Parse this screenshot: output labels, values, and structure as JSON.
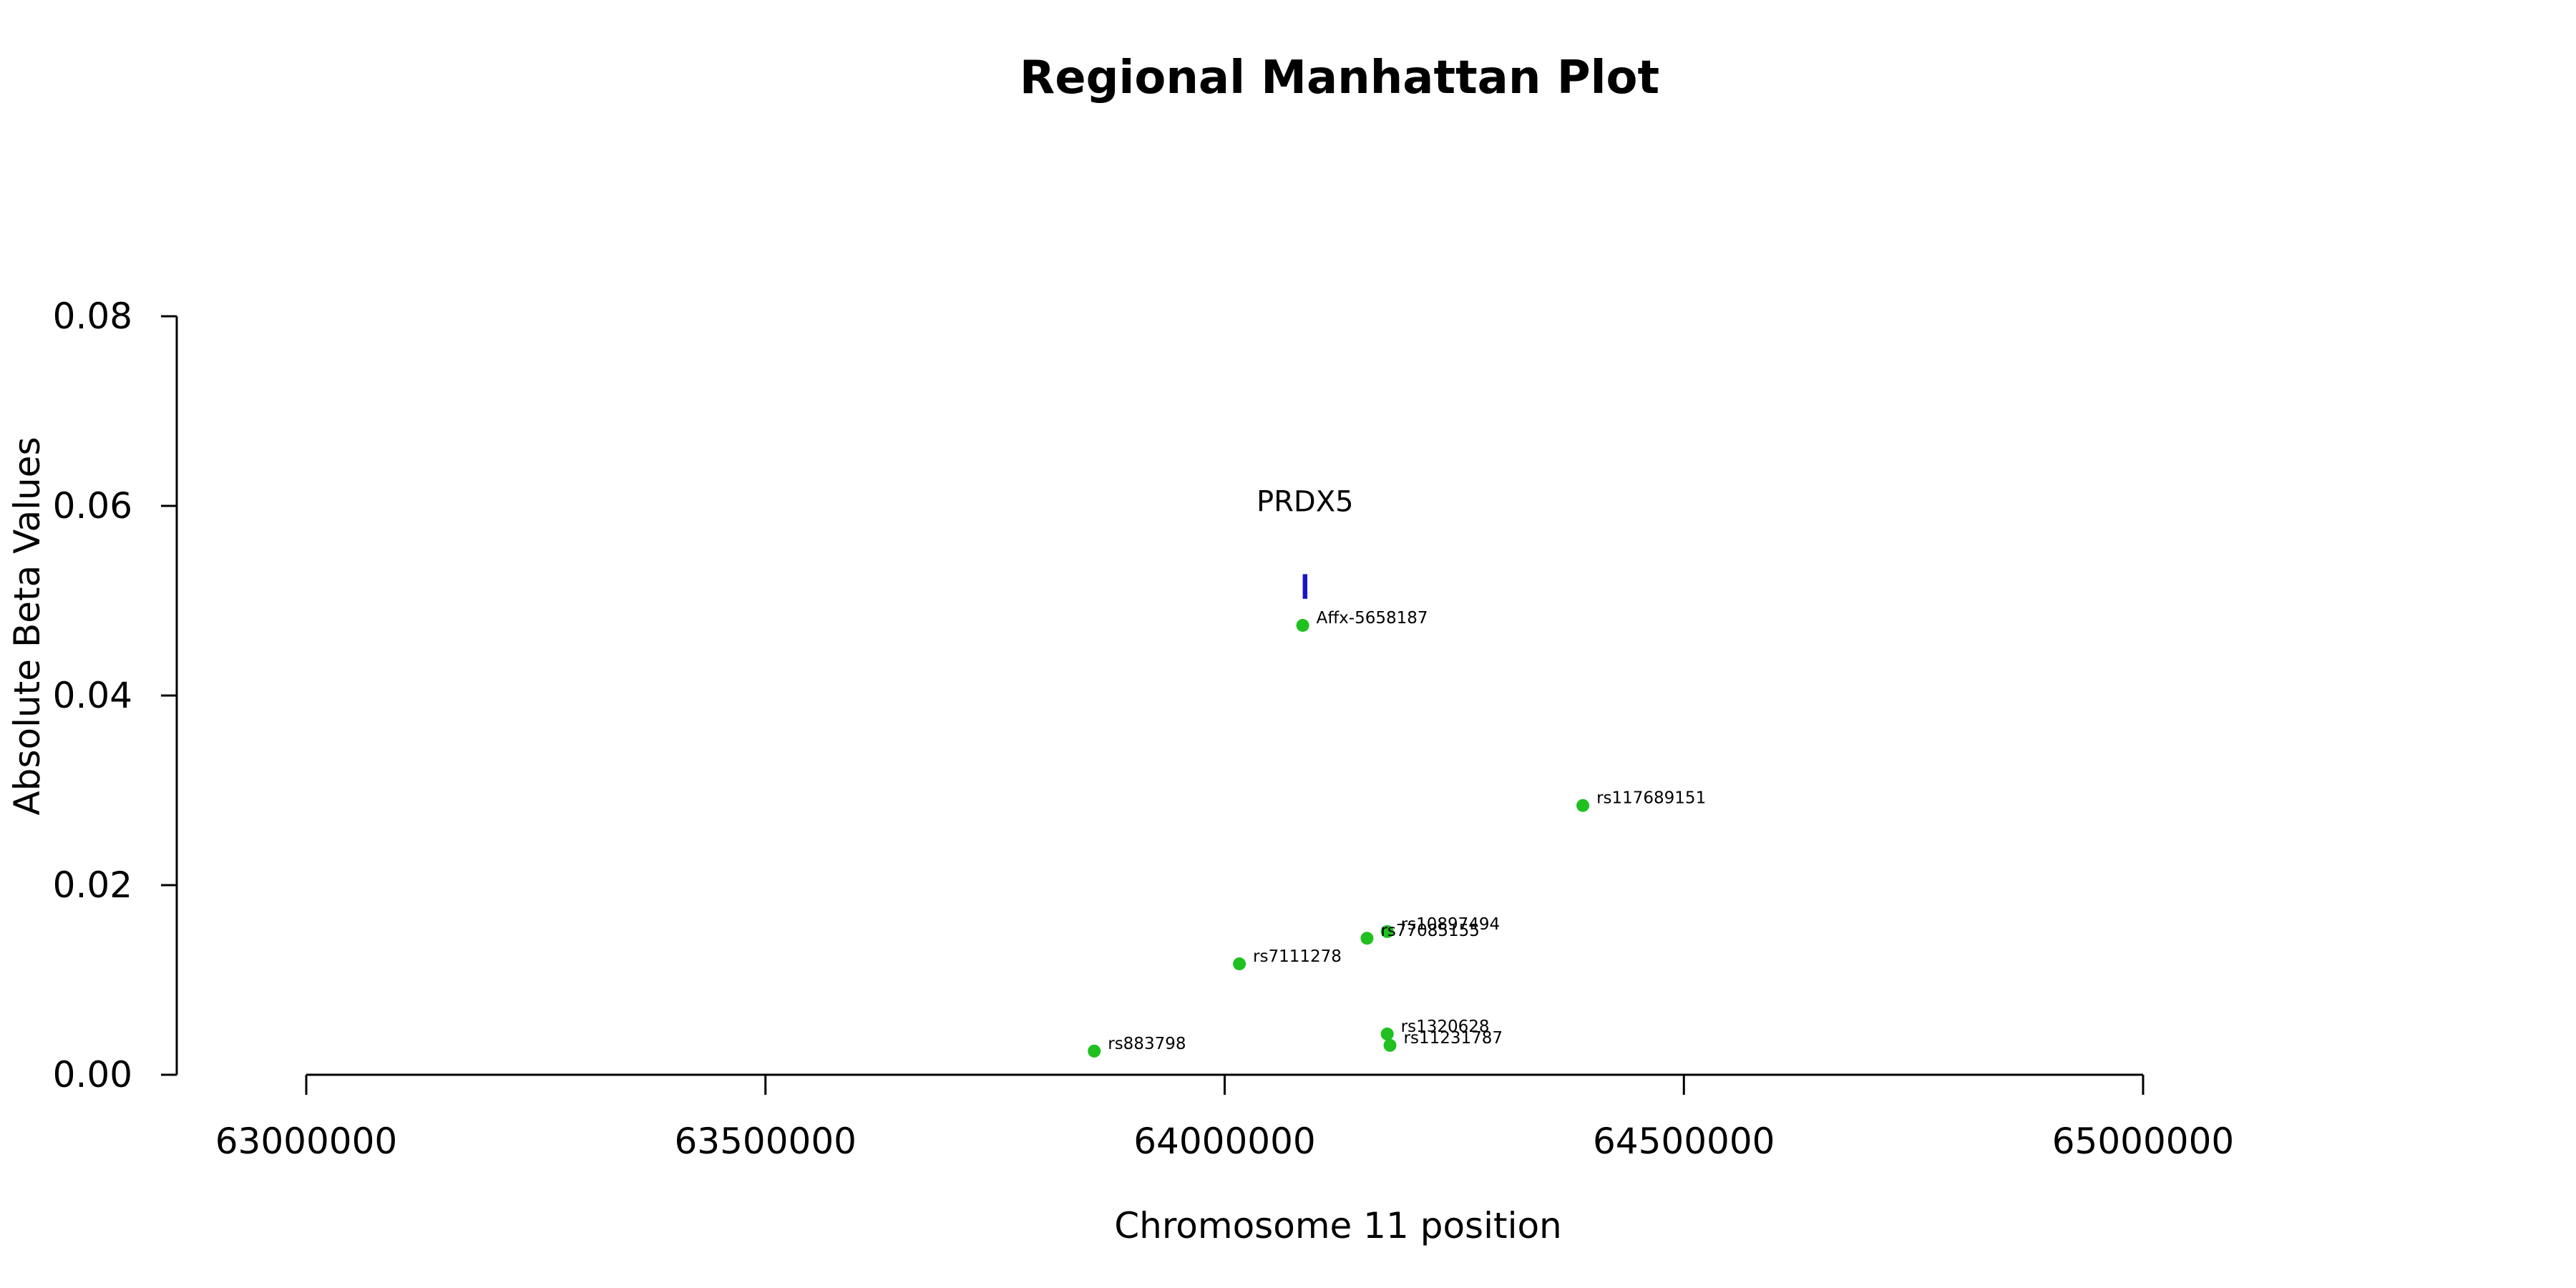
{
  "chart_data": {
    "type": "scatter",
    "title": "Regional Manhattan Plot",
    "xlabel": "Chromosome 11 position",
    "ylabel": "Absolute Beta Values",
    "xlim": [
      62800000,
      65200000
    ],
    "ylim": [
      0,
      0.08
    ],
    "x_ticks": [
      63000000,
      63500000,
      64000000,
      64500000,
      65000000
    ],
    "x_tick_labels": [
      "63000000",
      "63500000",
      "64000000",
      "64500000",
      "65000000"
    ],
    "y_ticks": [
      0,
      0.02,
      0.04,
      0.06,
      0.08
    ],
    "y_tick_labels": [
      "0.00",
      "0.02",
      "0.04",
      "0.06",
      "0.08"
    ],
    "grid": false,
    "point_color": "#1fc01f",
    "gene_color": "#1a14c8",
    "points": [
      {
        "label": "Affx-5658187",
        "x": 64085000,
        "y": 0.0474
      },
      {
        "label": "rs117689151",
        "x": 64390000,
        "y": 0.0284
      },
      {
        "label": "rs10897494",
        "x": 64177000,
        "y": 0.0151
      },
      {
        "label": "rs77085155",
        "x": 64155000,
        "y": 0.0144
      },
      {
        "label": "rs7111278",
        "x": 64016000,
        "y": 0.0117
      },
      {
        "label": "rs1320628",
        "x": 64177000,
        "y": 0.0043
      },
      {
        "label": "rs11231787",
        "x": 64180000,
        "y": 0.0031
      },
      {
        "label": "rs883798",
        "x": 63858000,
        "y": 0.0025
      }
    ],
    "genes": [
      {
        "name": "PRDX5",
        "start": 64085000,
        "end": 64090000,
        "y_low": 0.0502,
        "y_high": 0.0528,
        "label_y": 0.0605
      }
    ]
  }
}
